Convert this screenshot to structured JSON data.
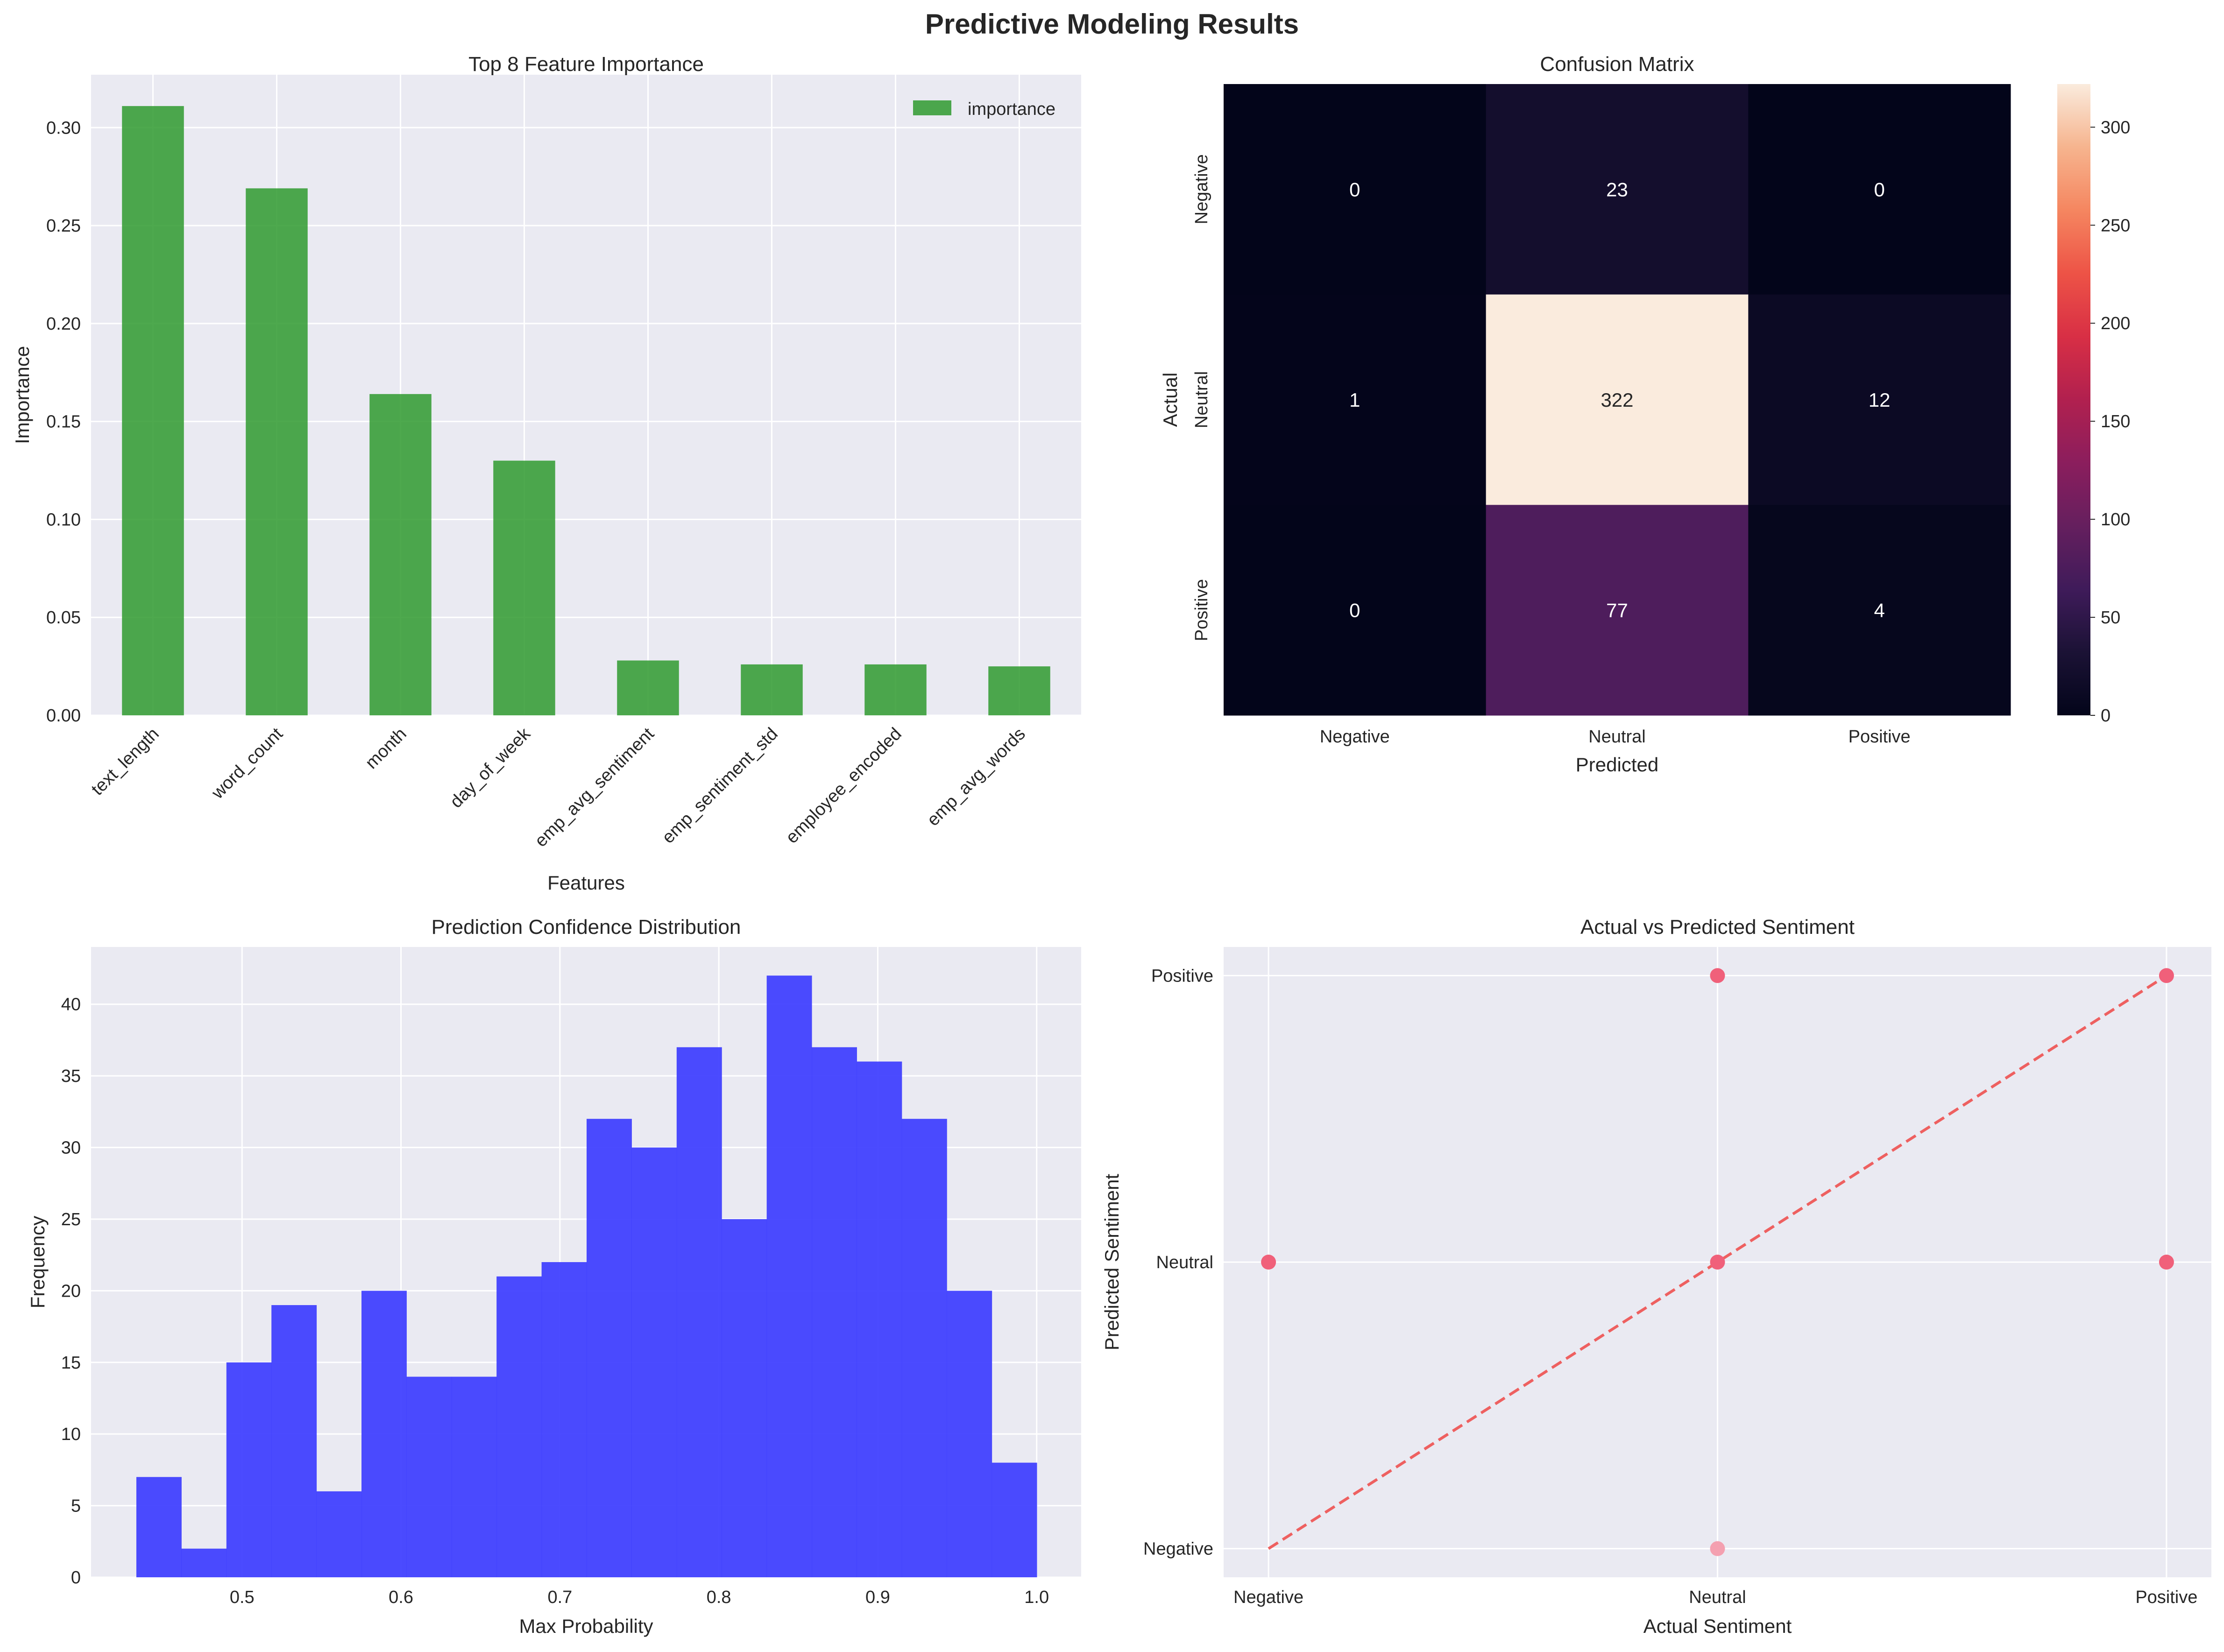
{
  "figure": {
    "title": "Predictive Modeling Results"
  },
  "colors": {
    "panel_bg": "#eaeaf2",
    "grid": "#ffffff",
    "bar": "#2f9a2f",
    "hist": "#3c3cff",
    "scatter": "#f0607a",
    "scatter_light": "#f4a0b0",
    "diag": "#ee6060"
  },
  "chart_data": [
    {
      "type": "bar",
      "title": "Top 8 Feature Importance",
      "xlabel": "Features",
      "ylabel": "Importance",
      "categories": [
        "text_length",
        "word_count",
        "month",
        "day_of_week",
        "emp_avg_sentiment",
        "emp_sentiment_std",
        "employee_encoded",
        "emp_avg_words"
      ],
      "series": [
        {
          "name": "importance",
          "values": [
            0.311,
            0.269,
            0.164,
            0.13,
            0.028,
            0.026,
            0.026,
            0.025
          ]
        }
      ],
      "ylim": [
        0,
        0.327
      ],
      "yticks": [
        0.0,
        0.05,
        0.1,
        0.15,
        0.2,
        0.25,
        0.3
      ],
      "ytick_labels": [
        "0.00",
        "0.05",
        "0.10",
        "0.15",
        "0.20",
        "0.25",
        "0.30"
      ],
      "grid": true,
      "legend": "top-right"
    },
    {
      "type": "heatmap",
      "title": "Confusion Matrix",
      "xlabel": "Predicted",
      "ylabel": "Actual",
      "x_categories": [
        "Negative",
        "Neutral",
        "Positive"
      ],
      "y_categories": [
        "Negative",
        "Neutral",
        "Positive"
      ],
      "values": [
        [
          0,
          23,
          0
        ],
        [
          1,
          322,
          12
        ],
        [
          0,
          77,
          4
        ]
      ],
      "colorbar": {
        "min": 0,
        "max": 322,
        "ticks": [
          0,
          50,
          100,
          150,
          200,
          250,
          300
        ]
      }
    },
    {
      "type": "bar",
      "subtype": "histogram",
      "title": "Prediction Confidence Distribution",
      "xlabel": "Max Probability",
      "ylabel": "Frequency",
      "bin_start": 0.4335,
      "bin_width": 0.02833,
      "values": [
        7,
        2,
        15,
        19,
        6,
        20,
        14,
        14,
        21,
        22,
        32,
        30,
        37,
        25,
        42,
        37,
        36,
        32,
        20,
        8
      ],
      "xlim": [
        0.405,
        1.028
      ],
      "ylim": [
        0,
        44
      ],
      "xticks": [
        0.5,
        0.6,
        0.7,
        0.8,
        0.9,
        1.0
      ],
      "xtick_labels": [
        "0.5",
        "0.6",
        "0.7",
        "0.8",
        "0.9",
        "1.0"
      ],
      "yticks": [
        0,
        5,
        10,
        15,
        20,
        25,
        30,
        35,
        40
      ],
      "grid": true
    },
    {
      "type": "scatter",
      "title": "Actual vs Predicted Sentiment",
      "xlabel": "Actual Sentiment",
      "ylabel": "Predicted Sentiment",
      "categories": [
        "Negative",
        "Neutral",
        "Positive"
      ],
      "points": [
        {
          "x": -1,
          "y": 0,
          "alpha": "solid"
        },
        {
          "x": 0,
          "y": 0,
          "alpha": "solid"
        },
        {
          "x": 0,
          "y": 1,
          "alpha": "solid"
        },
        {
          "x": 0,
          "y": -1,
          "alpha": "light"
        },
        {
          "x": 1,
          "y": 1,
          "alpha": "solid"
        },
        {
          "x": 1,
          "y": 0,
          "alpha": "solid"
        }
      ],
      "reference_line": {
        "from": [
          -1,
          -1
        ],
        "to": [
          1,
          1
        ],
        "style": "dashed"
      },
      "xlim": [
        -1.1,
        1.1
      ],
      "ylim": [
        -1.1,
        1.1
      ],
      "grid": true
    }
  ]
}
